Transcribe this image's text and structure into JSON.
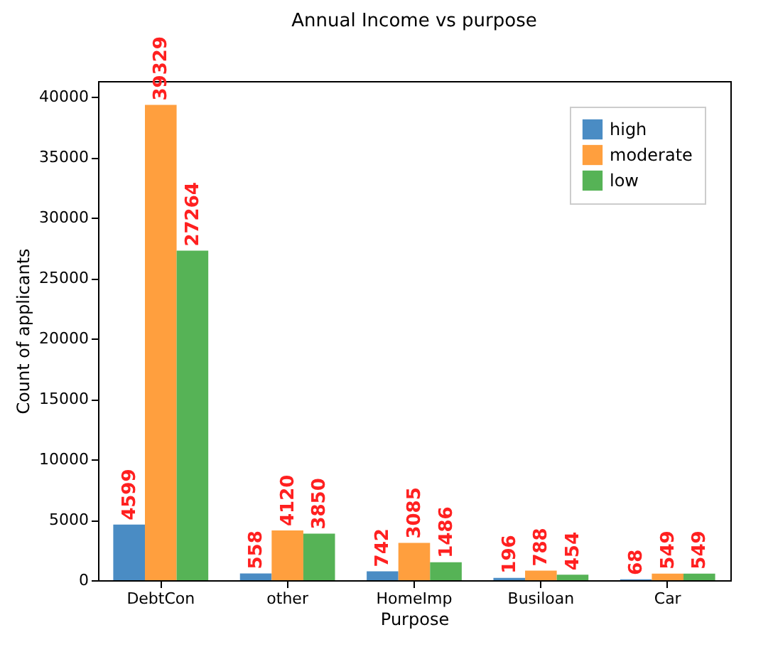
{
  "chart_data": {
    "type": "bar",
    "title": "Annual Income vs purpose",
    "xlabel": "Purpose",
    "ylabel": "Count of applicants",
    "categories": [
      "DebtCon",
      "other",
      "HomeImp",
      "Busiloan",
      "Car"
    ],
    "series": [
      {
        "name": "high",
        "color": "#4a8cc4",
        "values": [
          4599,
          558,
          742,
          196,
          68
        ]
      },
      {
        "name": "moderate",
        "color": "#ff9f3e",
        "values": [
          39329,
          4120,
          3085,
          788,
          549
        ]
      },
      {
        "name": "low",
        "color": "#56b356",
        "values": [
          27264,
          3850,
          1486,
          454,
          549
        ]
      }
    ],
    "ylim": [
      0,
      41300
    ],
    "yticks": [
      0,
      5000,
      10000,
      15000,
      20000,
      25000,
      30000,
      35000,
      40000
    ],
    "data_labels": true,
    "legend": "top right",
    "grid": false
  }
}
